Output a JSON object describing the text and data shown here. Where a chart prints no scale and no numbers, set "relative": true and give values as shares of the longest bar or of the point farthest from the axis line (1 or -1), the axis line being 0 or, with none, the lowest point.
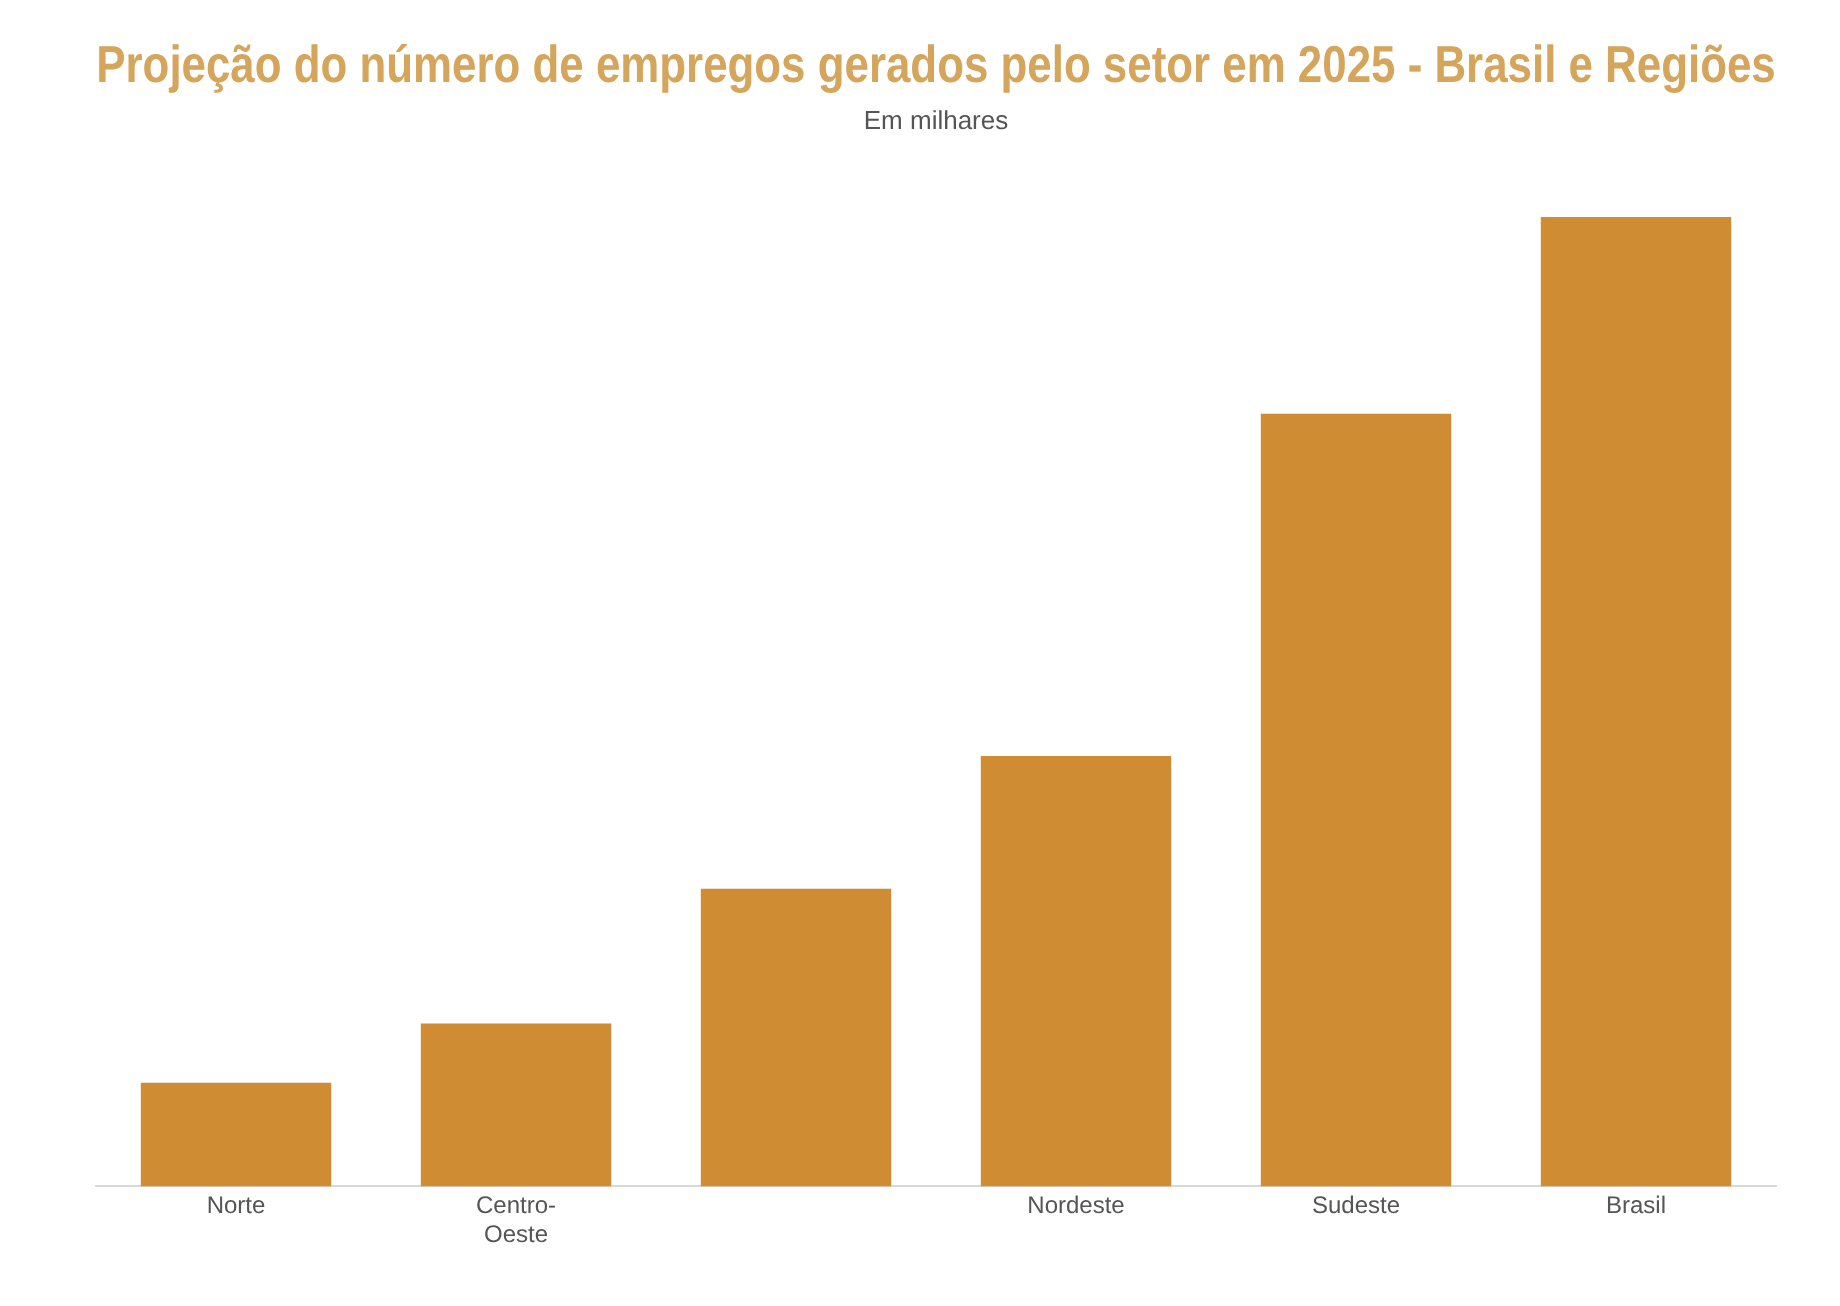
{
  "chart_data": {
    "type": "bar",
    "title": "Projeção do número de empregos gerados pelo setor em 2025 - Brasil e Regiões",
    "subtitle": "Em milhares",
    "categories": [
      "Norte",
      "Centro-\nOeste",
      null,
      "Nordeste",
      "Sudeste",
      "Brasil"
    ],
    "values": [
      0.107,
      0.168,
      0.307,
      0.444,
      0.797,
      1
    ],
    "color": "#d08c32",
    "relative": true,
    "grid": false,
    "legend": false
  }
}
